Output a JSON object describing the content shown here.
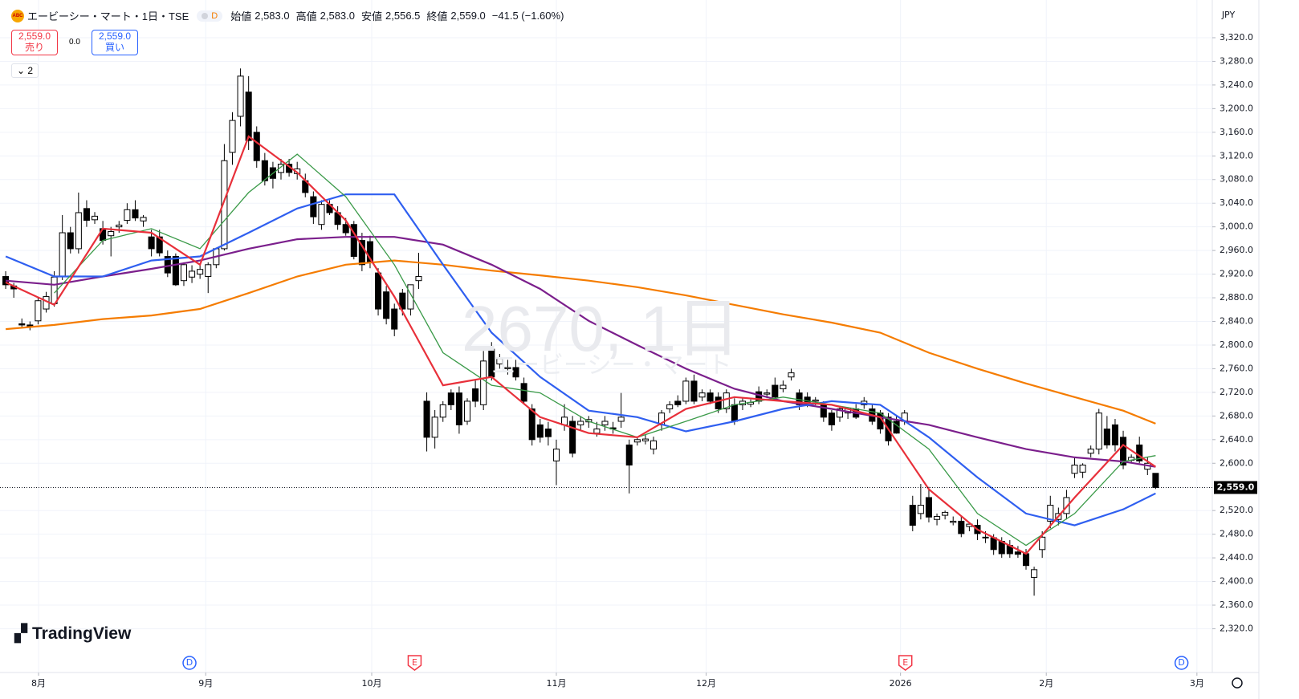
{
  "header": {
    "logo": "ABC",
    "symbol": "エービーシー・マート・1日・TSE",
    "delay": "D",
    "open_label": "始値",
    "open": "2,583.0",
    "high_label": "高値",
    "high": "2,583.0",
    "low_label": "安値",
    "low": "2,556.5",
    "close_label": "終値",
    "close": "2,559.0",
    "change": "−41.5 (−1.60%)"
  },
  "trade": {
    "sell_price": "2,559.0",
    "sell": "売り",
    "spread": "0.0",
    "buy_price": "2,559.0",
    "buy": "買い"
  },
  "indicators_count": "2",
  "currency": "JPY",
  "watermark": {
    "line1": "2670, 1日",
    "line2": "エービーシー・マート"
  },
  "brand": "TradingView",
  "chart_data": {
    "type": "candlestick",
    "grid": true,
    "up_color": "#ffffff",
    "down_color": "#000000",
    "xlim": [
      -0.7,
      149
    ],
    "ylim": [
      2246,
      3377
    ],
    "xticks": [
      {
        "value": 4.06,
        "label": "8月"
      },
      {
        "value": 24.7,
        "label": "9月"
      },
      {
        "value": 45.2,
        "label": "10月"
      },
      {
        "value": 68.0,
        "label": "11月"
      },
      {
        "value": 86.5,
        "label": "12月"
      },
      {
        "value": 110.5,
        "label": "2026"
      },
      {
        "value": 128.5,
        "label": "2月"
      },
      {
        "value": 147.1,
        "label": "3月"
      }
    ],
    "yticks": [
      {
        "value": 3320,
        "label": "3,320.0"
      },
      {
        "value": 3280,
        "label": "3,280.0"
      },
      {
        "value": 3240,
        "label": "3,240.0"
      },
      {
        "value": 3200,
        "label": "3,200.0"
      },
      {
        "value": 3160,
        "label": "3,160.0"
      },
      {
        "value": 3120,
        "label": "3,120.0"
      },
      {
        "value": 3080,
        "label": "3,080.0"
      },
      {
        "value": 3040,
        "label": "3,040.0"
      },
      {
        "value": 3000,
        "label": "3,000.0"
      },
      {
        "value": 2960,
        "label": "2,960.0"
      },
      {
        "value": 2920,
        "label": "2,920.0"
      },
      {
        "value": 2880,
        "label": "2,880.0"
      },
      {
        "value": 2840,
        "label": "2,840.0"
      },
      {
        "value": 2800,
        "label": "2,800.0"
      },
      {
        "value": 2760,
        "label": "2,760.0"
      },
      {
        "value": 2720,
        "label": "2,720.0"
      },
      {
        "value": 2680,
        "label": "2,680.0"
      },
      {
        "value": 2640,
        "label": "2,640.0"
      },
      {
        "value": 2600,
        "label": "2,600.0"
      },
      {
        "value": 2520,
        "label": "2,520.0"
      },
      {
        "value": 2480,
        "label": "2,480.0"
      },
      {
        "value": 2440,
        "label": "2,440.0"
      },
      {
        "value": 2400,
        "label": "2,400.0"
      },
      {
        "value": 2360,
        "label": "2,360.0"
      },
      {
        "value": 2320,
        "label": "2,320.0"
      }
    ],
    "last_price": {
      "value": 2559,
      "label": "2,559.0"
    },
    "candles": [
      [
        2916,
        2925,
        2895,
        2902
      ],
      [
        2900,
        2905,
        2880,
        2895
      ],
      [
        2836,
        2845,
        2828,
        2834
      ],
      [
        2834,
        2840,
        2825,
        2832
      ],
      [
        2841,
        2880,
        2835,
        2875
      ],
      [
        2861,
        2890,
        2855,
        2882
      ],
      [
        2870,
        2925,
        2865,
        2915
      ],
      [
        2916,
        3020,
        2910,
        2990
      ],
      [
        2990,
        3000,
        2955,
        2963
      ],
      [
        2963,
        3058,
        2955,
        3024
      ],
      [
        3031,
        3045,
        3000,
        3011
      ],
      [
        3012,
        3025,
        3005,
        3018
      ],
      [
        2997,
        3010,
        2970,
        2977
      ],
      [
        2985,
        3000,
        2950,
        2992
      ],
      [
        3000,
        3010,
        2990,
        3003
      ],
      [
        3011,
        3040,
        3005,
        3029
      ],
      [
        3029,
        3045,
        3010,
        3015
      ],
      [
        3010,
        3020,
        3000,
        3016
      ],
      [
        2983,
        2995,
        2950,
        2963
      ],
      [
        2983,
        2995,
        2950,
        2956
      ],
      [
        2950,
        2960,
        2915,
        2922
      ],
      [
        2950,
        2955,
        2900,
        2902
      ],
      [
        2909,
        2940,
        2900,
        2936
      ],
      [
        2915,
        2935,
        2905,
        2925
      ],
      [
        2920,
        2935,
        2912,
        2928
      ],
      [
        2916,
        2940,
        2888,
        2936
      ],
      [
        2936,
        2965,
        2930,
        2963
      ],
      [
        2963,
        3140,
        2960,
        3112
      ],
      [
        3126,
        3194,
        3105,
        3180
      ],
      [
        3187,
        3268,
        3170,
        3255
      ],
      [
        3228,
        3255,
        3130,
        3146
      ],
      [
        3160,
        3170,
        3100,
        3112
      ],
      [
        3112,
        3125,
        3070,
        3078
      ],
      [
        3100,
        3110,
        3065,
        3082
      ],
      [
        3092,
        3115,
        3080,
        3106
      ],
      [
        3106,
        3115,
        3085,
        3092
      ],
      [
        3090,
        3110,
        3080,
        3098
      ],
      [
        3078,
        3090,
        3050,
        3058
      ],
      [
        3051,
        3060,
        3005,
        3017
      ],
      [
        3004,
        3045,
        2995,
        3038
      ],
      [
        3038,
        3045,
        3020,
        3024
      ],
      [
        3024,
        3035,
        2995,
        3004
      ],
      [
        3004,
        3015,
        2985,
        2990
      ],
      [
        3004,
        3010,
        2945,
        2950
      ],
      [
        2977,
        2990,
        2925,
        2936
      ],
      [
        2975,
        2985,
        2930,
        2940
      ],
      [
        2922,
        2930,
        2850,
        2861
      ],
      [
        2890,
        2900,
        2835,
        2845
      ],
      [
        2861,
        2870,
        2815,
        2827
      ],
      [
        2888,
        2895,
        2850,
        2861
      ],
      [
        2861,
        2900,
        2850,
        2902
      ],
      [
        2909,
        2956,
        2895,
        2916
      ],
      [
        2705,
        2720,
        2620,
        2644
      ],
      [
        2644,
        2690,
        2625,
        2678
      ],
      [
        2678,
        2705,
        2670,
        2699
      ],
      [
        2719,
        2725,
        2690,
        2699
      ],
      [
        2719,
        2730,
        2650,
        2665
      ],
      [
        2671,
        2710,
        2665,
        2705
      ],
      [
        2726,
        2740,
        2695,
        2705
      ],
      [
        2699,
        2790,
        2690,
        2773
      ],
      [
        2793,
        2805,
        2740,
        2746
      ],
      [
        2768,
        2785,
        2760,
        2777
      ],
      [
        2760,
        2775,
        2750,
        2762
      ],
      [
        2762,
        2775,
        2740,
        2746
      ],
      [
        2735,
        2745,
        2700,
        2705
      ],
      [
        2692,
        2700,
        2630,
        2640
      ],
      [
        2665,
        2675,
        2635,
        2644
      ],
      [
        2658,
        2670,
        2630,
        2645
      ],
      [
        2604,
        2640,
        2563,
        2624
      ],
      [
        2665,
        2700,
        2655,
        2678
      ],
      [
        2671,
        2680,
        2610,
        2617
      ],
      [
        2665,
        2680,
        2655,
        2671
      ],
      [
        2670,
        2680,
        2660,
        2674
      ],
      [
        2651,
        2670,
        2645,
        2658
      ],
      [
        2665,
        2680,
        2655,
        2671
      ],
      [
        2660,
        2670,
        2650,
        2658
      ],
      [
        2671,
        2719,
        2660,
        2678
      ],
      [
        2631,
        2640,
        2549,
        2597
      ],
      [
        2636,
        2645,
        2630,
        2640
      ],
      [
        2638,
        2648,
        2632,
        2641
      ],
      [
        2624,
        2645,
        2615,
        2638
      ],
      [
        2665,
        2690,
        2655,
        2685
      ],
      [
        2692,
        2705,
        2685,
        2699
      ],
      [
        2705,
        2715,
        2695,
        2699
      ],
      [
        2705,
        2745,
        2700,
        2739
      ],
      [
        2739,
        2750,
        2700,
        2705
      ],
      [
        2712,
        2725,
        2705,
        2719
      ],
      [
        2719,
        2725,
        2700,
        2705
      ],
      [
        2712,
        2720,
        2685,
        2692
      ],
      [
        2692,
        2725,
        2685,
        2719
      ],
      [
        2699,
        2710,
        2665,
        2671
      ],
      [
        2699,
        2710,
        2690,
        2705
      ],
      [
        2700,
        2708,
        2695,
        2703
      ],
      [
        2721,
        2730,
        2700,
        2705
      ],
      [
        2717,
        2725,
        2710,
        2719
      ],
      [
        2732,
        2745,
        2705,
        2712
      ],
      [
        2726,
        2740,
        2720,
        2732
      ],
      [
        2746,
        2760,
        2740,
        2753
      ],
      [
        2719,
        2725,
        2690,
        2699
      ],
      [
        2712,
        2720,
        2695,
        2699
      ],
      [
        2705,
        2712,
        2698,
        2707
      ],
      [
        2699,
        2705,
        2670,
        2678
      ],
      [
        2685,
        2690,
        2655,
        2665
      ],
      [
        2678,
        2695,
        2670,
        2692
      ],
      [
        2685,
        2695,
        2675,
        2692
      ],
      [
        2692,
        2700,
        2675,
        2678
      ],
      [
        2699,
        2712,
        2692,
        2705
      ],
      [
        2692,
        2700,
        2665,
        2671
      ],
      [
        2685,
        2690,
        2650,
        2658
      ],
      [
        2678,
        2685,
        2630,
        2638
      ],
      [
        2671,
        2680,
        2650,
        2651
      ],
      [
        2671,
        2690,
        2665,
        2685
      ],
      [
        2529,
        2545,
        2485,
        2495
      ],
      [
        2515,
        2565,
        2505,
        2529
      ],
      [
        2542,
        2560,
        2500,
        2509
      ],
      [
        2505,
        2515,
        2495,
        2510
      ],
      [
        2512,
        2520,
        2505,
        2517
      ],
      [
        2500,
        2510,
        2495,
        2502
      ],
      [
        2502,
        2510,
        2475,
        2481
      ],
      [
        2493,
        2500,
        2485,
        2497
      ],
      [
        2495,
        2505,
        2470,
        2481
      ],
      [
        2475,
        2485,
        2465,
        2474
      ],
      [
        2474,
        2480,
        2445,
        2454
      ],
      [
        2468,
        2475,
        2440,
        2447
      ],
      [
        2461,
        2470,
        2440,
        2447
      ],
      [
        2450,
        2460,
        2440,
        2446
      ],
      [
        2447,
        2455,
        2420,
        2427
      ],
      [
        2407,
        2425,
        2376,
        2420
      ],
      [
        2454,
        2485,
        2440,
        2475
      ],
      [
        2502,
        2545,
        2490,
        2529
      ],
      [
        2505,
        2525,
        2495,
        2515
      ],
      [
        2515,
        2555,
        2505,
        2542
      ],
      [
        2583,
        2610,
        2575,
        2597
      ],
      [
        2585,
        2600,
        2575,
        2597
      ],
      [
        2617,
        2630,
        2610,
        2624
      ],
      [
        2624,
        2692,
        2615,
        2685
      ],
      [
        2658,
        2680,
        2625,
        2631
      ],
      [
        2665,
        2675,
        2620,
        2631
      ],
      [
        2644,
        2655,
        2590,
        2597
      ],
      [
        2605,
        2615,
        2600,
        2610
      ],
      [
        2631,
        2645,
        2600,
        2604
      ],
      [
        2590,
        2610,
        2580,
        2600
      ],
      [
        2583,
        2583,
        2556.5,
        2559
      ]
    ],
    "line_x": [
      0,
      6,
      12,
      18,
      24,
      30,
      36,
      42,
      48,
      54,
      60,
      66,
      72,
      78,
      84,
      90,
      96,
      102,
      108,
      114,
      120,
      126,
      132,
      138,
      142
    ],
    "lines": [
      {
        "color": "#f57c00",
        "values": [
          2827,
          2834,
          2844,
          2850,
          2861,
          2888,
          2916,
          2936,
          2943,
          2936,
          2926,
          2918,
          2909,
          2898,
          2884,
          2868,
          2852,
          2838,
          2821,
          2787,
          2760,
          2735,
          2712,
          2689,
          2667
        ]
      },
      {
        "color": "#7b1f8c",
        "values": [
          2909,
          2902,
          2916,
          2929,
          2943,
          2963,
          2979,
          2983,
          2983,
          2970,
          2936,
          2895,
          2841,
          2800,
          2760,
          2726,
          2705,
          2692,
          2678,
          2665,
          2644,
          2624,
          2610,
          2603,
          2594
        ]
      },
      {
        "color": "#2f5ff0",
        "values": [
          2950,
          2916,
          2916,
          2943,
          2950,
          2990,
          3031,
          3055,
          3055,
          2936,
          2821,
          2746,
          2689,
          2678,
          2654,
          2671,
          2692,
          2705,
          2699,
          2644,
          2576,
          2515,
          2495,
          2522,
          2549
        ]
      },
      {
        "color": "#3a9a48",
        "values": [
          null,
          2888,
          2977,
          2997,
          2963,
          3058,
          3123,
          3051,
          2936,
          2787,
          2732,
          2719,
          2671,
          2644,
          2671,
          2699,
          2712,
          2699,
          2685,
          2624,
          2515,
          2461,
          2515,
          2603,
          2613
        ]
      },
      {
        "color": "#e8303a",
        "values": [
          2906,
          2868,
          2997,
          2990,
          2936,
          3153,
          3092,
          3011,
          2882,
          2732,
          2746,
          2678,
          2651,
          2644,
          2692,
          2712,
          2705,
          2699,
          2678,
          2556,
          2488,
          2447,
          2542,
          2631,
          2594
        ]
      }
    ],
    "events": [
      {
        "label": "D",
        "x": 22.7,
        "color": "#2962ff"
      },
      {
        "label": "E",
        "x": 50.5,
        "color": "#f23645"
      },
      {
        "label": "E",
        "x": 111.1,
        "color": "#f23645"
      },
      {
        "label": "D",
        "x": 145.2,
        "color": "#2962ff"
      }
    ]
  }
}
